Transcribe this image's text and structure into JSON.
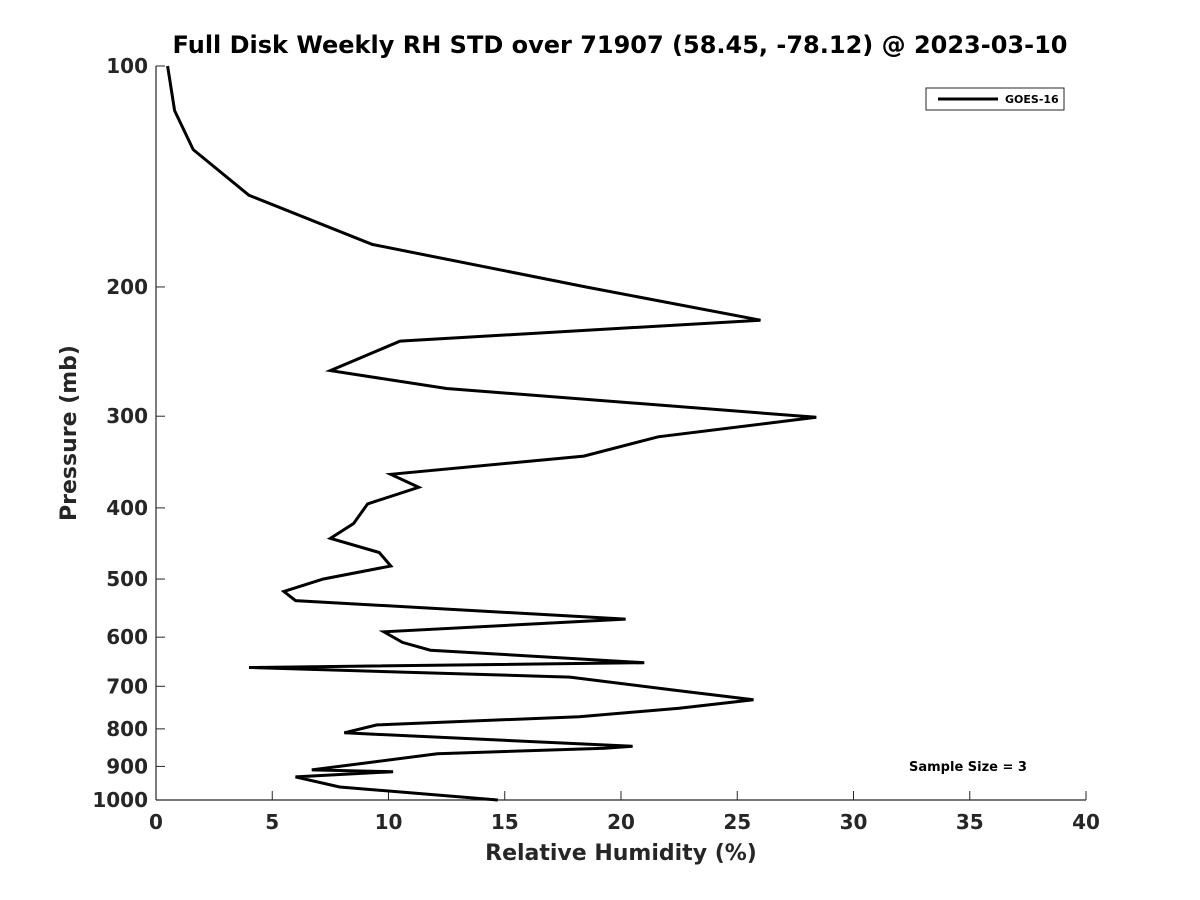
{
  "chart_data": {
    "type": "line",
    "title": "Full Disk Weekly RH STD over 71907 (58.45, -78.12) @ 2023-03-10",
    "xlabel": "Relative Humidity (%)",
    "ylabel": "Pressure (mb)",
    "xlim": [
      0,
      40
    ],
    "ylim": [
      100,
      1000
    ],
    "yscale": "log",
    "y_reversed": true,
    "grid": false,
    "legend_position": "top-right",
    "x_ticks": [
      0,
      5,
      10,
      15,
      20,
      25,
      30,
      35,
      40
    ],
    "y_ticks": [
      100,
      200,
      300,
      400,
      500,
      600,
      700,
      800,
      900,
      1000
    ],
    "annotation": "Sample Size = 3",
    "series": [
      {
        "name": "GOES-16",
        "color": "#000000",
        "x": [
          0.5,
          0.8,
          1.6,
          4.0,
          9.3,
          18.5,
          26.0,
          10.5,
          7.5,
          12.5,
          28.4,
          21.6,
          18.4,
          10.1,
          11.3,
          9.1,
          8.5,
          7.5,
          9.6,
          10.1,
          7.2,
          5.5,
          6.0,
          20.2,
          9.8,
          10.6,
          11.8,
          21.0,
          4.0,
          17.8,
          22.5,
          25.7,
          22.5,
          18.2,
          9.5,
          8.1,
          20.5,
          19.3,
          12.1,
          6.7,
          10.2,
          6.0,
          7.9,
          14.7
        ],
        "y": [
          100,
          115,
          130,
          150,
          175,
          200,
          222,
          237,
          260,
          275,
          301,
          320,
          340,
          360,
          375,
          395,
          420,
          440,
          460,
          480,
          500,
          520,
          535,
          567,
          590,
          610,
          625,
          650,
          660,
          680,
          710,
          730,
          750,
          770,
          790,
          810,
          845,
          850,
          865,
          910,
          915,
          930,
          960,
          1000
        ]
      }
    ]
  }
}
